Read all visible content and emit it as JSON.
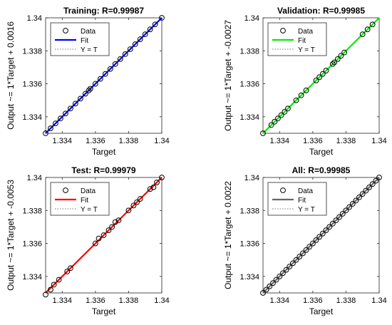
{
  "chart_data": [
    {
      "type": "scatter",
      "title": "Training: R=0.99987",
      "xlabel": "Target",
      "ylabel": "Output ~= 1*Target + 0.0016",
      "xlim": [
        1.333,
        1.34
      ],
      "ylim": [
        1.333,
        1.34
      ],
      "xticks": [
        "1.334",
        "1.336",
        "1.338",
        "1.34"
      ],
      "yticks": [
        "1.334",
        "1.336",
        "1.338",
        "1.34"
      ],
      "fit_color": "#0000ff",
      "legend": {
        "placement": "top-left",
        "entries": [
          "Data",
          "Fit",
          "Y = T"
        ]
      },
      "series": [
        {
          "name": "Data",
          "x": [
            1.333,
            1.3333,
            1.3336,
            1.3339,
            1.3342,
            1.3345,
            1.3348,
            1.3351,
            1.3354,
            1.3356,
            1.3357,
            1.336,
            1.3363,
            1.3366,
            1.3369,
            1.3372,
            1.3375,
            1.3378,
            1.3381,
            1.3384,
            1.3387,
            1.339,
            1.3393,
            1.3396,
            1.34
          ],
          "y": [
            1.333,
            1.3333,
            1.3336,
            1.3339,
            1.3342,
            1.3345,
            1.3348,
            1.3351,
            1.3354,
            1.3356,
            1.3357,
            1.336,
            1.3363,
            1.3366,
            1.3369,
            1.3372,
            1.3375,
            1.3378,
            1.3381,
            1.3384,
            1.3387,
            1.339,
            1.3393,
            1.3396,
            1.34
          ]
        },
        {
          "name": "Fit",
          "x": [
            1.333,
            1.34
          ],
          "y": [
            1.333,
            1.34
          ]
        },
        {
          "name": "Y = T",
          "x": [
            1.333,
            1.34
          ],
          "y": [
            1.333,
            1.34
          ]
        }
      ]
    },
    {
      "type": "scatter",
      "title": "Validation: R=0.99985",
      "xlabel": "Target",
      "ylabel": "Output ~= 1*Target + -0.0027",
      "xlim": [
        1.333,
        1.34
      ],
      "ylim": [
        1.333,
        1.34
      ],
      "xticks": [
        "1.334",
        "1.336",
        "1.338",
        "1.34"
      ],
      "yticks": [
        "1.334",
        "1.336",
        "1.338",
        "1.34"
      ],
      "fit_color": "#00ee00",
      "legend": {
        "placement": "top-left",
        "entries": [
          "Data",
          "Fit",
          "Y = T"
        ]
      },
      "series": [
        {
          "name": "Data",
          "x": [
            1.333,
            1.3335,
            1.3337,
            1.3339,
            1.3341,
            1.3343,
            1.3345,
            1.335,
            1.3353,
            1.3356,
            1.3362,
            1.3364,
            1.3366,
            1.3368,
            1.3372,
            1.3373,
            1.3375,
            1.3377,
            1.3379,
            1.339,
            1.3393,
            1.3396
          ],
          "y": [
            1.333,
            1.3335,
            1.3337,
            1.3339,
            1.3341,
            1.3343,
            1.3345,
            1.335,
            1.3353,
            1.3356,
            1.3362,
            1.3364,
            1.3366,
            1.3368,
            1.3372,
            1.3373,
            1.3375,
            1.3377,
            1.3379,
            1.339,
            1.3393,
            1.3396
          ]
        },
        {
          "name": "Fit",
          "x": [
            1.333,
            1.34
          ],
          "y": [
            1.333,
            1.34
          ]
        },
        {
          "name": "Y = T",
          "x": [
            1.333,
            1.34
          ],
          "y": [
            1.333,
            1.34
          ]
        }
      ]
    },
    {
      "type": "scatter",
      "title": "Test: R=0.99979",
      "xlabel": "Target",
      "ylabel": "Output ~= 1*Target + -0.0053",
      "xlim": [
        1.333,
        1.34
      ],
      "ylim": [
        1.333,
        1.34
      ],
      "xticks": [
        "1.334",
        "1.336",
        "1.338",
        "1.34"
      ],
      "yticks": [
        "1.334",
        "1.336",
        "1.338",
        "1.34"
      ],
      "fit_color": "#ff0000",
      "legend": {
        "placement": "top-left",
        "entries": [
          "Data",
          "Fit",
          "Y = T"
        ]
      },
      "series": [
        {
          "name": "Data",
          "x": [
            1.333,
            1.3333,
            1.3335,
            1.3338,
            1.3343,
            1.3345,
            1.336,
            1.3362,
            1.3365,
            1.3368,
            1.337,
            1.3372,
            1.3374,
            1.338,
            1.3383,
            1.3385,
            1.3387,
            1.3393,
            1.3395,
            1.3397,
            1.34
          ],
          "y": [
            1.3329,
            1.3332,
            1.3335,
            1.3338,
            1.3343,
            1.3345,
            1.336,
            1.3363,
            1.3365,
            1.3368,
            1.337,
            1.3373,
            1.3374,
            1.338,
            1.3383,
            1.3385,
            1.3387,
            1.3393,
            1.3394,
            1.3397,
            1.34
          ]
        },
        {
          "name": "Fit",
          "x": [
            1.333,
            1.34
          ],
          "y": [
            1.333,
            1.34
          ]
        },
        {
          "name": "Y = T",
          "x": [
            1.333,
            1.34
          ],
          "y": [
            1.333,
            1.34
          ]
        }
      ]
    },
    {
      "type": "scatter",
      "title": "All: R=0.99985",
      "xlabel": "Target",
      "ylabel": "Output ~= 1*Target + 0.0022",
      "xlim": [
        1.333,
        1.34
      ],
      "ylim": [
        1.333,
        1.34
      ],
      "xticks": [
        "1.334",
        "1.336",
        "1.338",
        "1.34"
      ],
      "yticks": [
        "1.334",
        "1.336",
        "1.338",
        "1.34"
      ],
      "fit_color": "#666666",
      "legend": {
        "placement": "top-left",
        "entries": [
          "Data",
          "Fit",
          "Y = T"
        ]
      },
      "series": [
        {
          "name": "Data",
          "x": [
            1.333,
            1.3332,
            1.3334,
            1.3336,
            1.3338,
            1.334,
            1.3342,
            1.3344,
            1.3346,
            1.3348,
            1.335,
            1.3352,
            1.3354,
            1.3356,
            1.3358,
            1.336,
            1.3362,
            1.3364,
            1.3366,
            1.3368,
            1.337,
            1.3372,
            1.3374,
            1.3376,
            1.3378,
            1.338,
            1.3382,
            1.3384,
            1.3386,
            1.3388,
            1.339,
            1.3392,
            1.3394,
            1.3396,
            1.3398,
            1.34
          ],
          "y": [
            1.333,
            1.3332,
            1.3334,
            1.3336,
            1.3338,
            1.334,
            1.3342,
            1.3344,
            1.3346,
            1.3348,
            1.335,
            1.3352,
            1.3354,
            1.3356,
            1.3358,
            1.336,
            1.3362,
            1.3364,
            1.3366,
            1.3368,
            1.337,
            1.3372,
            1.3374,
            1.3376,
            1.3378,
            1.338,
            1.3382,
            1.3384,
            1.3386,
            1.3388,
            1.339,
            1.3392,
            1.3394,
            1.3396,
            1.3398,
            1.34
          ]
        },
        {
          "name": "Fit",
          "x": [
            1.333,
            1.34
          ],
          "y": [
            1.333,
            1.34
          ]
        },
        {
          "name": "Y = T",
          "x": [
            1.333,
            1.34
          ],
          "y": [
            1.333,
            1.34
          ]
        }
      ]
    }
  ]
}
